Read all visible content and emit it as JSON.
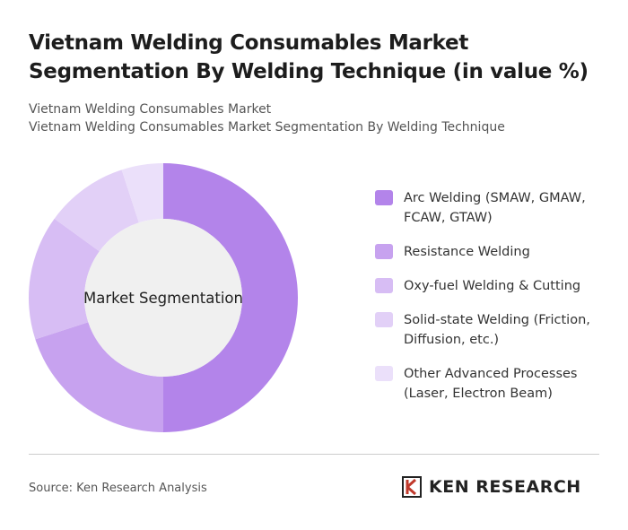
{
  "chart_data": {
    "type": "donut",
    "title": "Vietnam Welding Consumables Market Segmentation By Welding Technique (in value %)",
    "subtitle_lines": [
      "Vietnam Welding Consumables Market",
      "Vietnam Welding Consumables Market Segmentation By Welding Technique"
    ],
    "center_label": "Market Segmentation",
    "categories": [
      "Arc Welding (SMAW, GMAW, FCAW, GTAW)",
      "Resistance Welding",
      "Oxy-fuel Welding & Cutting",
      "Solid-state Welding (Friction, Diffusion, etc.)",
      "Other Advanced Processes (Laser, Electron Beam)"
    ],
    "values": [
      50,
      20,
      15,
      10,
      5
    ],
    "colors": [
      "#b384ea",
      "#c7a2ef",
      "#d7bdf4",
      "#e2d0f7",
      "#ebe0fa"
    ]
  },
  "footer": {
    "source": "Source: Ken Research Analysis",
    "brand": "KEN RESEARCH"
  }
}
